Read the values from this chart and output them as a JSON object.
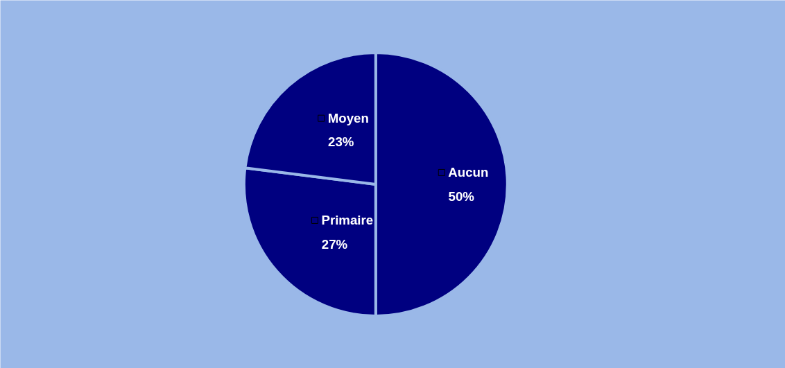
{
  "chart_data": {
    "type": "pie",
    "categories": [
      "Aucun",
      "Primaire",
      "Moyen"
    ],
    "values": [
      50,
      27,
      23
    ],
    "colors": [
      "#000080",
      "#000080",
      "#000080"
    ],
    "value_labels": [
      "50%",
      "27%",
      "23%"
    ],
    "legend": "center"
  }
}
